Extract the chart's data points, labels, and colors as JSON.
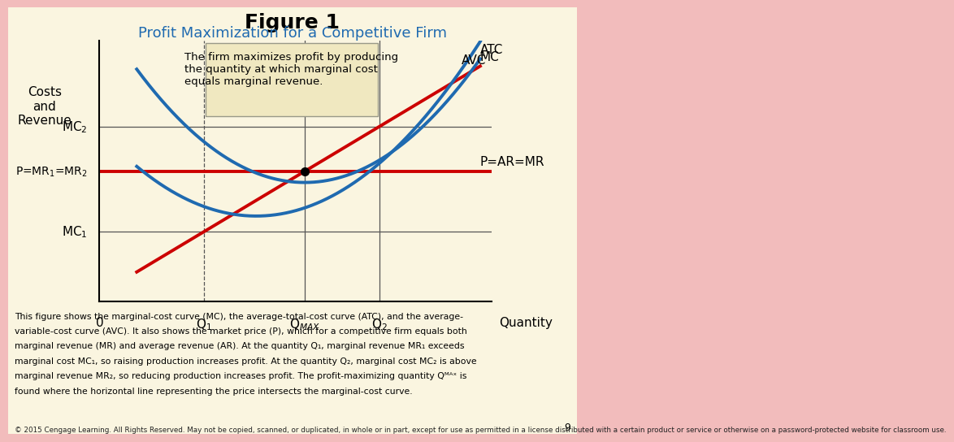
{
  "title": "Figure 1",
  "subtitle": "Profit Maximization for a Competitive Firm",
  "ylabel": "Costs\nand\nRevenue",
  "xlabel_quantity": "Quantity",
  "annotation_box_text": "The firm maximizes profit by producing\nthe quantity at which marginal cost\nequals marginal revenue.",
  "curve_color_blue": "#1F6AB0",
  "curve_color_red": "#CC0000",
  "background_outer": "#F2BCBC",
  "background_inner": "#FAF5E0",
  "annotation_box_color": "#F0E8C0",
  "label_MC": "MC",
  "label_ATC": "ATC",
  "label_PAR_MR": "P=AR=MR",
  "label_AVC": "AVC",
  "label_MC2": "MC$_2$",
  "label_MC1": "MC$_1$",
  "label_PMRMR": "P=MR$_1$=MR$_2$",
  "label_Q1": "Q$_1$",
  "label_QMAX": "Q$_{MAX}$",
  "label_Q2": "Q$_2$",
  "title_color": "#000000",
  "subtitle_color": "#1F6AB0",
  "body_text": "This figure shows the marginal-cost curve (MC), the average-total-cost curve (ATC), and the average-variable-cost curve (AVC). It also shows the market price (P), which for a competitive firm equals both marginal revenue (MR) and average revenue (AR). At the quantity Q₁, marginal revenue MR₁ exceeds marginal cost MC₁, so raising production increases profit. At the quantity Q₂, marginal cost MC₂ is above marginal revenue MR₂, so reducing production increases profit. The profit-maximizing quantity Qᴹᴬˣ is found where the horizontal line representing the price intersects the marginal-cost curve.",
  "copyright_text": "© 2015 Cengage Learning. All Rights Reserved. May not be copied, scanned, or duplicated, in whole or in part, except for use as permitted in a license distributed with a certain product or service or otherwise on a password-protected website for classroom use.",
  "page_number": "9",
  "xlim": [
    0,
    10.5
  ],
  "ylim": [
    0,
    7.0
  ],
  "x_q1": 2.8,
  "x_qmax": 5.5,
  "x_q2": 7.5,
  "p_level": 3.5,
  "mc_slope": 0.6,
  "atc_min_x": 5.5,
  "atc_min_y": 3.2,
  "atc_coef": 0.15,
  "avc_min_x": 4.2,
  "avc_min_y": 2.3,
  "avc_coef": 0.13
}
